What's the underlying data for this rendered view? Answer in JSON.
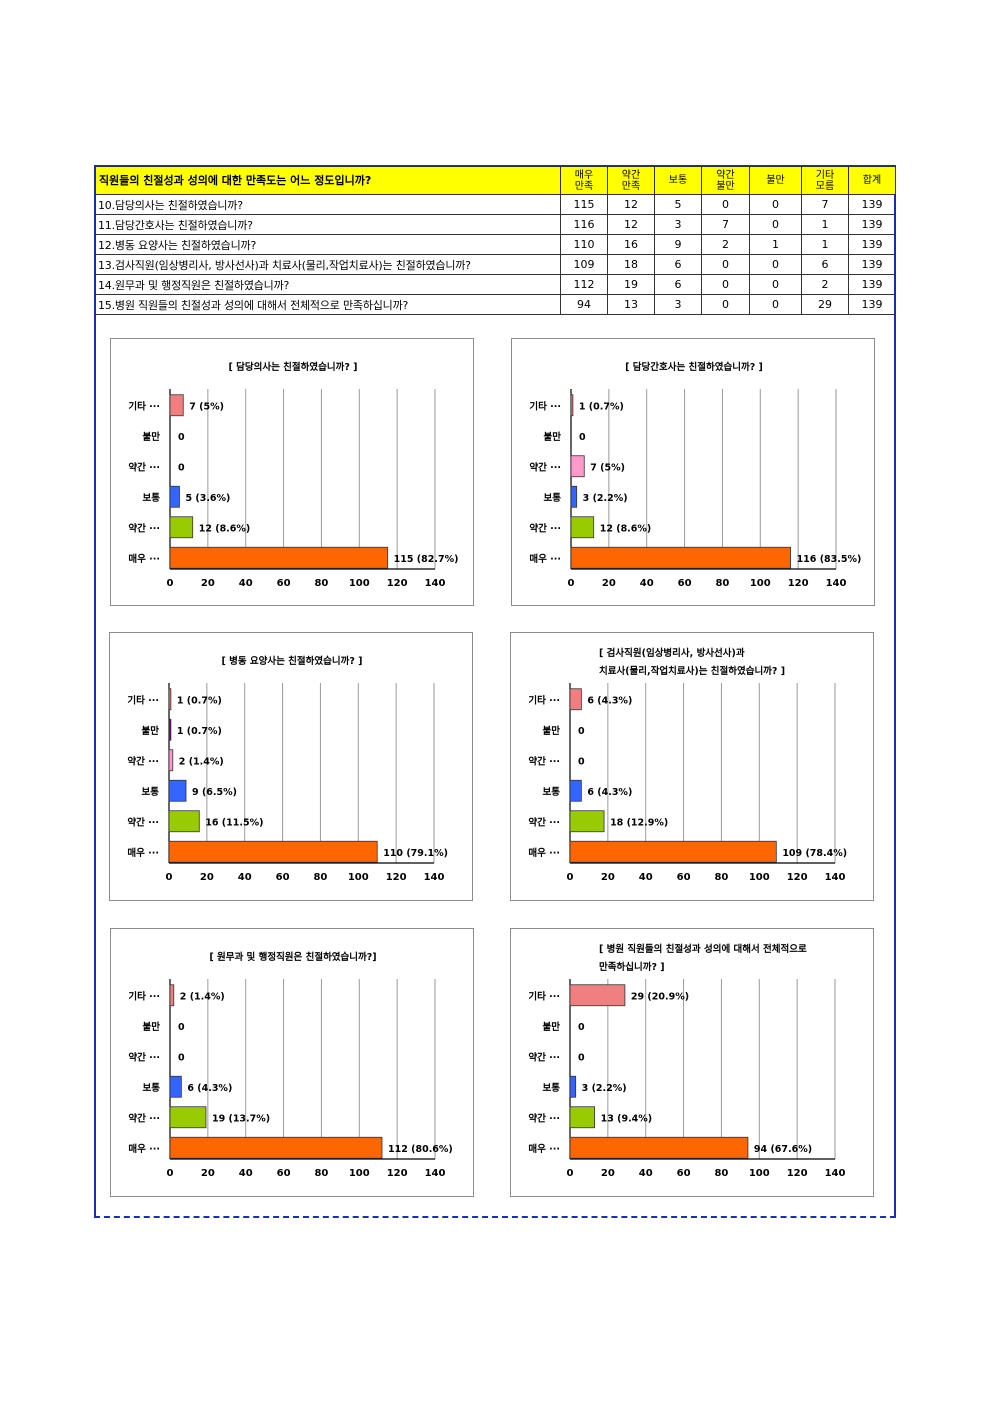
{
  "table": {
    "header": {
      "question": "직원들의 친절성과 성의에 대한 만족도는 어느 정도입니까?",
      "cols": [
        [
          "매우",
          "만족"
        ],
        [
          "약간",
          "만족"
        ],
        [
          "보통"
        ],
        [
          "약간",
          "불만"
        ],
        [
          "불만"
        ],
        [
          "기타",
          "모름"
        ],
        [
          "합계"
        ]
      ]
    },
    "rows": [
      {
        "q": "10.담당의사는 친절하였습니까?",
        "v": [
          "115",
          "12",
          "5",
          "0",
          "0",
          "7",
          "139"
        ]
      },
      {
        "q": "11.담당간호사는 친절하였습니까?",
        "v": [
          "116",
          "12",
          "3",
          "7",
          "0",
          "1",
          "139"
        ]
      },
      {
        "q": "12.병동 요양사는 친절하였습니까?",
        "v": [
          "110",
          "16",
          "9",
          "2",
          "1",
          "1",
          "139"
        ]
      },
      {
        "q": "13.검사직원(임상병리사, 방사선사)과 치료사(물리,작업치료사)는 친절하였습니까?",
        "v": [
          "109",
          "18",
          "6",
          "0",
          "0",
          "6",
          "139"
        ]
      },
      {
        "q": "14.원무과 및 행정직원은 친절하였습니까?",
        "v": [
          "112",
          "19",
          "6",
          "0",
          "0",
          "2",
          "139"
        ]
      },
      {
        "q": "15.병원 직원들의 친절성과 성의에 대해서 전체적으로 만족하십니까?",
        "v": [
          "94",
          "13",
          "3",
          "0",
          "0",
          "29",
          "139"
        ]
      }
    ]
  },
  "colors": {
    "기타": "#f08080",
    "불만": "#800080",
    "약간불만": "#ff99cc",
    "보통": "#3366ff",
    "약간만족": "#99cc00",
    "매우": "#ff6600"
  },
  "chart_data": [
    {
      "type": "bar",
      "orientation": "horizontal",
      "title_lines": [
        "[ 담당의사는 친절하였습니까? ]"
      ],
      "categories": [
        "기타 ···",
        "불만",
        "약간 ···",
        "보통",
        "약간 ···",
        "매우 ···"
      ],
      "values": [
        7,
        0,
        0,
        5,
        12,
        115
      ],
      "labels": [
        "7 (5%)",
        "0",
        "0",
        "5 (3.6%)",
        "12 (8.6%)",
        "115 (82.7%)"
      ],
      "xlim": [
        0,
        140
      ],
      "ticks": [
        "0",
        "20",
        "40",
        "60",
        "80",
        "100",
        "120",
        "140"
      ],
      "grid": true
    },
    {
      "type": "bar",
      "orientation": "horizontal",
      "title_lines": [
        "[ 담당간호사는 친절하였습니까? ]"
      ],
      "categories": [
        "기타 ···",
        "불만",
        "약간 ···",
        "보통",
        "약간 ···",
        "매우 ···"
      ],
      "values": [
        1,
        0,
        7,
        3,
        12,
        116
      ],
      "labels": [
        "1 (0.7%)",
        "0",
        "7 (5%)",
        "3 (2.2%)",
        "12 (8.6%)",
        "116 (83.5%)"
      ],
      "xlim": [
        0,
        140
      ],
      "ticks": [
        "0",
        "20",
        "40",
        "60",
        "80",
        "100",
        "120",
        "140"
      ],
      "grid": true
    },
    {
      "type": "bar",
      "orientation": "horizontal",
      "title_lines": [
        "[ 병동 요양사는 친절하였습니까? ]"
      ],
      "categories": [
        "기타 ···",
        "불만",
        "약간 ···",
        "보통",
        "약간 ···",
        "매우 ···"
      ],
      "values": [
        1,
        1,
        2,
        9,
        16,
        110
      ],
      "labels": [
        "1 (0.7%)",
        "1 (0.7%)",
        "2 (1.4%)",
        "9 (6.5%)",
        "16 (11.5%)",
        "110 (79.1%)"
      ],
      "xlim": [
        0,
        140
      ],
      "ticks": [
        "0",
        "20",
        "40",
        "60",
        "80",
        "100",
        "120",
        "140"
      ],
      "grid": true
    },
    {
      "type": "bar",
      "orientation": "horizontal",
      "title_lines": [
        "[ 검사직원(임상병리사, 방사선사)과",
        "치료사(물리,작업치료사)는 친절하였습니까? ]"
      ],
      "categories": [
        "기타 ···",
        "불만",
        "약간 ···",
        "보통",
        "약간 ···",
        "매우 ···"
      ],
      "values": [
        6,
        0,
        0,
        6,
        18,
        109
      ],
      "labels": [
        "6 (4.3%)",
        "0",
        "0",
        "6 (4.3%)",
        "18 (12.9%)",
        "109 (78.4%)"
      ],
      "xlim": [
        0,
        140
      ],
      "ticks": [
        "0",
        "20",
        "40",
        "60",
        "80",
        "100",
        "120",
        "140"
      ],
      "grid": true
    },
    {
      "type": "bar",
      "orientation": "horizontal",
      "title_lines": [
        "[ 원무과 및 행정직원은 친절하였습니까?]"
      ],
      "categories": [
        "기타 ···",
        "불만",
        "약간 ···",
        "보통",
        "약간 ···",
        "매우 ···"
      ],
      "values": [
        2,
        0,
        0,
        6,
        19,
        112
      ],
      "labels": [
        "2 (1.4%)",
        "0",
        "0",
        "6 (4.3%)",
        "19 (13.7%)",
        "112 (80.6%)"
      ],
      "xlim": [
        0,
        140
      ],
      "ticks": [
        "0",
        "20",
        "40",
        "60",
        "80",
        "100",
        "120",
        "140"
      ],
      "grid": true
    },
    {
      "type": "bar",
      "orientation": "horizontal",
      "title_lines": [
        "[ 병원 직원들의 친절성과 성의에 대해서 전체적으로",
        "만족하십니까? ]"
      ],
      "categories": [
        "기타 ···",
        "불만",
        "약간 ···",
        "보통",
        "약간 ···",
        "매우 ···"
      ],
      "values": [
        29,
        0,
        0,
        3,
        13,
        94
      ],
      "labels": [
        "29 (20.9%)",
        "0",
        "0",
        "3 (2.2%)",
        "13 (9.4%)",
        "94 (67.6%)"
      ],
      "xlim": [
        0,
        140
      ],
      "ticks": [
        "0",
        "20",
        "40",
        "60",
        "80",
        "100",
        "120",
        "140"
      ],
      "grid": true
    }
  ]
}
